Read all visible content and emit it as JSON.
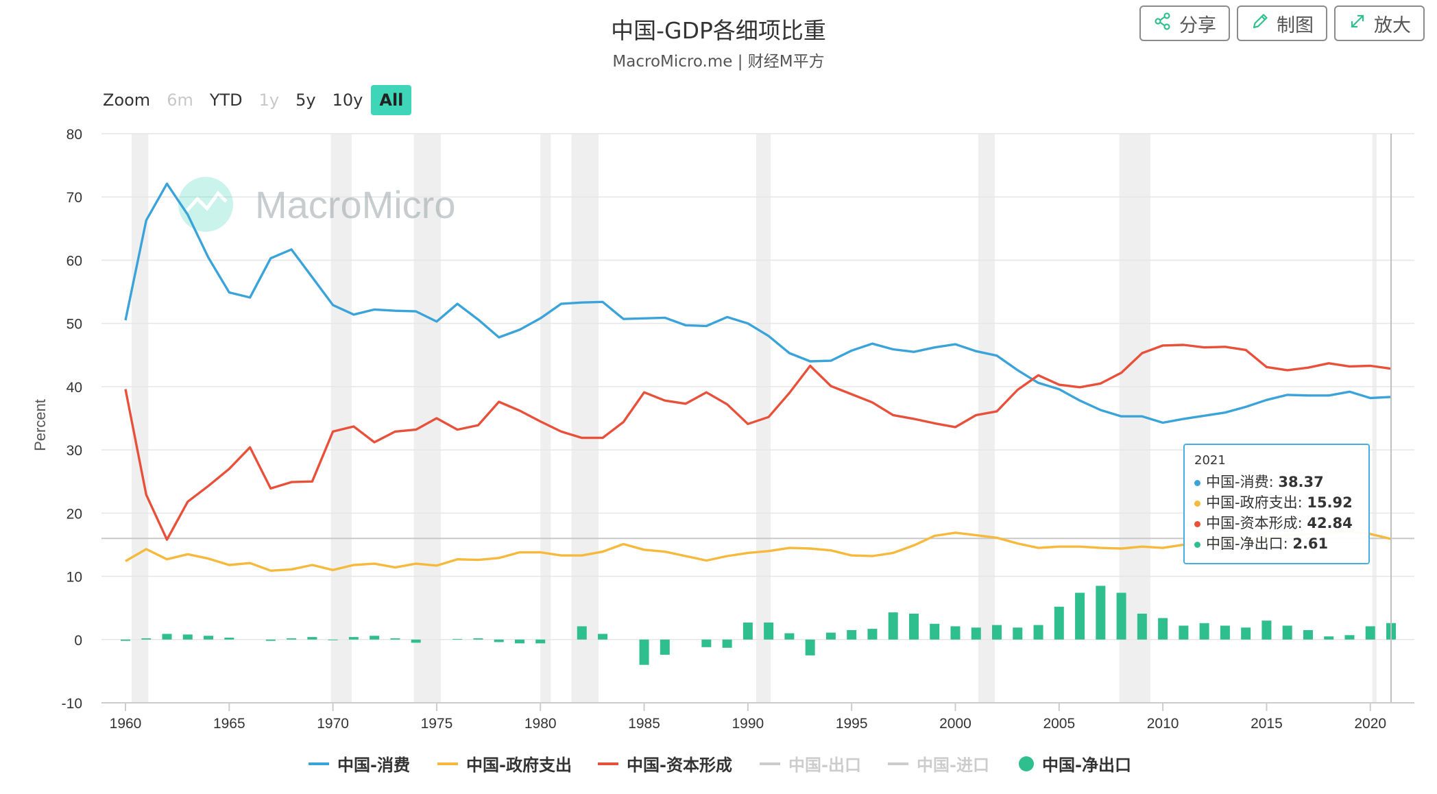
{
  "header": {
    "title": "中国-GDP各细项比重",
    "subtitle": "MacroMicro.me | 财经M平方"
  },
  "toolbar": {
    "share_label": "分享",
    "chart_label": "制图",
    "expand_label": "放大"
  },
  "zoom": {
    "label": "Zoom",
    "options": [
      "6m",
      "YTD",
      "1y",
      "5y",
      "10y",
      "All"
    ],
    "active": "All"
  },
  "watermark": "MacroMicro",
  "tooltip": {
    "date": "2021",
    "rows": [
      {
        "label": "中国-消费: ",
        "value": "38.37",
        "color": "#3aa3d9"
      },
      {
        "label": "中国-政府支出: ",
        "value": "15.92",
        "color": "#f6b93b"
      },
      {
        "label": "中国-资本形成: ",
        "value": "42.84",
        "color": "#e8503a"
      },
      {
        "label": "中国-净出口: ",
        "value": "2.61",
        "color": "#2fbf8f"
      }
    ]
  },
  "legend": [
    {
      "name": "中国-消费",
      "color": "#3aa3d9",
      "symbol": "line",
      "enabled": true
    },
    {
      "name": "中国-政府支出",
      "color": "#f6b93b",
      "symbol": "line",
      "enabled": true
    },
    {
      "name": "中国-资本形成",
      "color": "#e8503a",
      "symbol": "line",
      "enabled": true
    },
    {
      "name": "中国-出口",
      "color": "#cccccc",
      "symbol": "line",
      "enabled": false
    },
    {
      "name": "中国-进口",
      "color": "#cccccc",
      "symbol": "line",
      "enabled": false
    },
    {
      "name": "中国-净出口",
      "color": "#2fbf8f",
      "symbol": "circle",
      "enabled": true
    }
  ],
  "chart_data": {
    "type": "line",
    "ylabel": "Percent",
    "xlabel": "",
    "ylim": [
      -10,
      80
    ],
    "yticks": [
      -10,
      0,
      10,
      20,
      30,
      40,
      50,
      60,
      70,
      80
    ],
    "xticks": [
      1960,
      1965,
      1970,
      1975,
      1980,
      1985,
      1990,
      1995,
      2000,
      2005,
      2010,
      2015,
      2020
    ],
    "x": [
      1960,
      1961,
      1962,
      1963,
      1964,
      1965,
      1966,
      1967,
      1968,
      1969,
      1970,
      1971,
      1972,
      1973,
      1974,
      1975,
      1976,
      1977,
      1978,
      1979,
      1980,
      1981,
      1982,
      1983,
      1984,
      1985,
      1986,
      1987,
      1988,
      1989,
      1990,
      1991,
      1992,
      1993,
      1994,
      1995,
      1996,
      1997,
      1998,
      1999,
      2000,
      2001,
      2002,
      2003,
      2004,
      2005,
      2006,
      2007,
      2008,
      2009,
      2010,
      2011,
      2012,
      2013,
      2014,
      2015,
      2016,
      2017,
      2018,
      2019,
      2020,
      2021
    ],
    "plot_line_y": 16,
    "recession_bands": [
      [
        1960.3,
        1961.1
      ],
      [
        1969.9,
        1970.9
      ],
      [
        1973.9,
        1975.2
      ],
      [
        1980.0,
        1980.5
      ],
      [
        1981.5,
        1982.8
      ],
      [
        1990.4,
        1991.1
      ],
      [
        2001.1,
        2001.9
      ],
      [
        2007.9,
        2009.4
      ],
      [
        2020.1,
        2020.3
      ]
    ],
    "series": [
      {
        "name": "中国-消费",
        "type": "line",
        "color": "#3aa3d9",
        "values": [
          50.5,
          66.3,
          72.1,
          67.2,
          60.4,
          54.9,
          54.1,
          60.3,
          61.7,
          57.3,
          52.9,
          51.4,
          52.2,
          52.0,
          51.9,
          50.3,
          53.1,
          50.6,
          47.8,
          49.0,
          50.8,
          53.1,
          53.3,
          53.4,
          50.7,
          50.8,
          50.9,
          49.7,
          49.6,
          51.0,
          50.0,
          48.0,
          45.3,
          44.0,
          44.1,
          45.7,
          46.8,
          45.9,
          45.5,
          46.2,
          46.7,
          45.6,
          44.9,
          42.6,
          40.6,
          39.6,
          37.8,
          36.3,
          35.3,
          35.3,
          34.3,
          34.9,
          35.4,
          35.9,
          36.8,
          37.9,
          38.7,
          38.6,
          38.6,
          39.2,
          38.2,
          38.37
        ]
      },
      {
        "name": "中国-政府支出",
        "type": "line",
        "color": "#f6b93b",
        "values": [
          12.4,
          14.3,
          12.7,
          13.5,
          12.8,
          11.8,
          12.1,
          10.9,
          11.1,
          11.8,
          11.0,
          11.8,
          12.0,
          11.4,
          12.0,
          11.7,
          12.7,
          12.6,
          12.9,
          13.8,
          13.8,
          13.3,
          13.3,
          13.9,
          15.1,
          14.2,
          13.9,
          13.2,
          12.5,
          13.2,
          13.7,
          14.0,
          14.5,
          14.4,
          14.1,
          13.3,
          13.2,
          13.7,
          14.9,
          16.4,
          16.9,
          16.5,
          16.1,
          15.2,
          14.5,
          14.7,
          14.7,
          14.5,
          14.4,
          14.7,
          14.5,
          15.0,
          15.3,
          15.5,
          15.6,
          16.1,
          16.5,
          16.7,
          16.8,
          17.1,
          16.7,
          15.92
        ]
      },
      {
        "name": "中国-资本形成",
        "type": "line",
        "color": "#e8503a",
        "values": [
          39.6,
          22.9,
          15.8,
          21.8,
          24.3,
          27.0,
          30.4,
          23.9,
          24.9,
          25.0,
          32.9,
          33.7,
          31.2,
          32.9,
          33.2,
          35.0,
          33.2,
          33.9,
          37.6,
          36.2,
          34.5,
          32.9,
          31.9,
          31.9,
          34.4,
          39.1,
          37.8,
          37.3,
          39.1,
          37.2,
          34.1,
          35.2,
          39.0,
          43.3,
          40.1,
          38.8,
          37.5,
          35.5,
          34.9,
          34.2,
          33.6,
          35.5,
          36.1,
          39.5,
          41.8,
          40.3,
          39.9,
          40.5,
          42.2,
          45.3,
          46.5,
          46.6,
          46.2,
          46.3,
          45.8,
          43.1,
          42.6,
          43.0,
          43.7,
          43.2,
          43.3,
          42.84
        ]
      },
      {
        "name": "中国-净出口",
        "type": "bar",
        "color": "#2fbf8f",
        "values": [
          -0.2,
          0.2,
          0.9,
          0.8,
          0.6,
          0.3,
          0.0,
          -0.2,
          0.2,
          0.4,
          -0.1,
          0.4,
          0.6,
          0.2,
          -0.5,
          0.0,
          0.1,
          0.2,
          -0.4,
          -0.6,
          -0.6,
          0.0,
          2.1,
          0.9,
          0.0,
          -4.0,
          -2.4,
          0.0,
          -1.2,
          -1.3,
          2.7,
          2.7,
          1.0,
          -2.5,
          1.1,
          1.5,
          1.7,
          4.3,
          4.1,
          2.5,
          2.1,
          1.9,
          2.3,
          1.9,
          2.3,
          5.2,
          7.4,
          8.5,
          7.4,
          4.1,
          3.4,
          2.2,
          2.6,
          2.2,
          1.9,
          3.0,
          2.2,
          1.5,
          0.5,
          0.7,
          2.1,
          2.61
        ]
      }
    ]
  }
}
